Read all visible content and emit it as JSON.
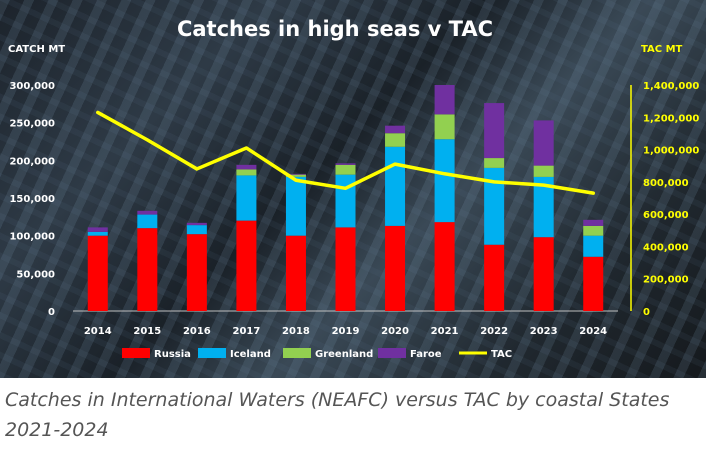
{
  "chart_data": {
    "type": "bar",
    "stacked": true,
    "title": "Catches in high seas v TAC",
    "ylabel_left": "CATCH MT",
    "ylabel_right": "TAC MT",
    "categories": [
      "2014",
      "2015",
      "2016",
      "2017",
      "2018",
      "2019",
      "2020",
      "2021",
      "2022",
      "2023",
      "2024"
    ],
    "ylim_left": [
      0,
      300000
    ],
    "ylim_right": [
      0,
      1400000
    ],
    "yticks_left": [
      "0",
      "50,000",
      "100,000",
      "150,000",
      "200,000",
      "250,000",
      "300,000"
    ],
    "yticks_right": [
      "0",
      "200,000",
      "400,000",
      "600,000",
      "800,000",
      "1,000,000",
      "1,200,000",
      "1,400,000"
    ],
    "series": [
      {
        "name": "Russia",
        "type": "bar",
        "axis": "left",
        "color": "#ff0000",
        "values": [
          100000,
          110000,
          102000,
          120000,
          100000,
          111000,
          113000,
          118000,
          88000,
          98000,
          72000
        ]
      },
      {
        "name": "Iceland",
        "type": "bar",
        "axis": "left",
        "color": "#00b0f0",
        "values": [
          5000,
          18000,
          12000,
          60000,
          78000,
          70000,
          105000,
          110000,
          102000,
          80000,
          28000
        ]
      },
      {
        "name": "Greenland",
        "type": "bar",
        "axis": "left",
        "color": "#92d050",
        "values": [
          0,
          0,
          0,
          8000,
          3000,
          13000,
          18000,
          33000,
          13000,
          15000,
          13000
        ]
      },
      {
        "name": "Faroe",
        "type": "bar",
        "axis": "left",
        "color": "#7030a0",
        "values": [
          6000,
          5000,
          3000,
          6000,
          1000,
          2000,
          10000,
          39000,
          73000,
          60000,
          8000
        ]
      },
      {
        "name": "TAC",
        "type": "line",
        "axis": "right",
        "color": "#ffff00",
        "values": [
          1230000,
          1060000,
          880000,
          1010000,
          810000,
          760000,
          910000,
          850000,
          800000,
          780000,
          730000
        ]
      }
    ],
    "legend_position": "bottom",
    "grid": false
  },
  "caption": "Catches in International Waters (NEAFC) versus TAC by coastal States 2021-2024"
}
